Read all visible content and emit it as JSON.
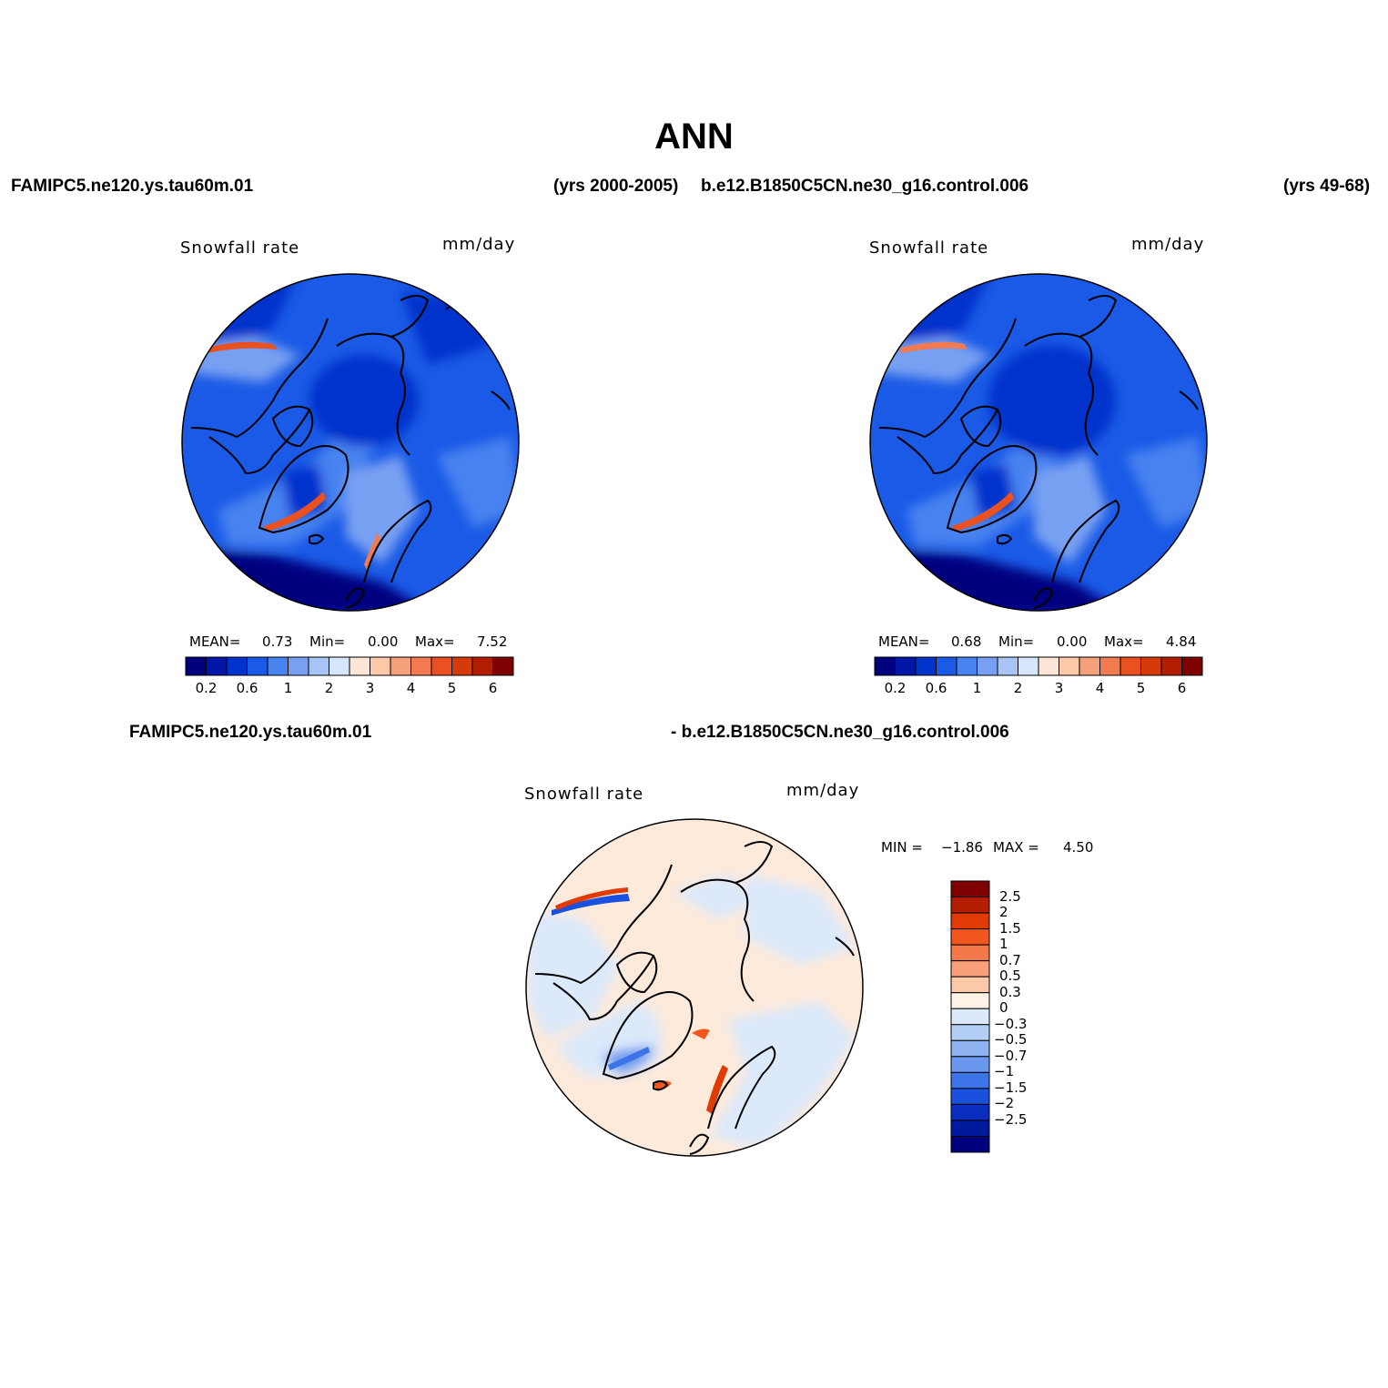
{
  "title": "ANN",
  "header": {
    "left_case": "FAMIPC5.ne120.ys.tau60m.01",
    "left_years": "(yrs 2000-2005)",
    "right_case": "b.e12.B1850C5CN.ne30_g16.control.006",
    "right_years": "(yrs 49-68)"
  },
  "panels": [
    {
      "variable": "Snowfall rate",
      "units": "mm/day",
      "mean_label": "MEAN=",
      "mean": "0.73",
      "min_label": "Min=",
      "min": "0.00",
      "max_label": "Max=",
      "max": "7.52"
    },
    {
      "variable": "Snowfall rate",
      "units": "mm/day",
      "mean_label": "MEAN=",
      "mean": "0.68",
      "min_label": "Min=",
      "min": "0.00",
      "max_label": "Max=",
      "max": "4.84"
    }
  ],
  "abs_colorbar": {
    "colors": [
      "#00007f",
      "#0016a6",
      "#0033cc",
      "#1a5ae6",
      "#4682f0",
      "#78a0f2",
      "#a8c4f5",
      "#d6e6fb",
      "#fde6d6",
      "#fbc8a8",
      "#f5a07a",
      "#f27a50",
      "#eb5020",
      "#d43a0a",
      "#b31e00",
      "#7f0000"
    ],
    "tick_labels": [
      "0.2",
      "0.6",
      "1",
      "2",
      "3",
      "4",
      "5",
      "6"
    ]
  },
  "diff": {
    "left_label": "FAMIPC5.ne120.ys.tau60m.01",
    "right_label": "- b.e12.B1850C5CN.ne30_g16.control.006",
    "variable": "Snowfall rate",
    "units": "mm/day",
    "min_label": "MIN =",
    "min": "−1.86",
    "max_label": "MAX =",
    "max": "4.50",
    "colorbar": {
      "colors": [
        "#7f0000",
        "#b31e00",
        "#e03a05",
        "#f2561e",
        "#f5784a",
        "#f8a07a",
        "#fbc8a8",
        "#fff2e6",
        "#dbe9fb",
        "#b4cff6",
        "#8eb2f0",
        "#6a98ee",
        "#3d74ea",
        "#1a50de",
        "#0a2fc0",
        "#001a9e",
        "#00007f"
      ],
      "labels": [
        "2.5",
        "2",
        "1.5",
        "1",
        "0.7",
        "0.5",
        "0.3",
        "0",
        "−0.3",
        "−0.5",
        "−0.7",
        "−1",
        "−1.5",
        "−2",
        "−2.5"
      ]
    }
  }
}
